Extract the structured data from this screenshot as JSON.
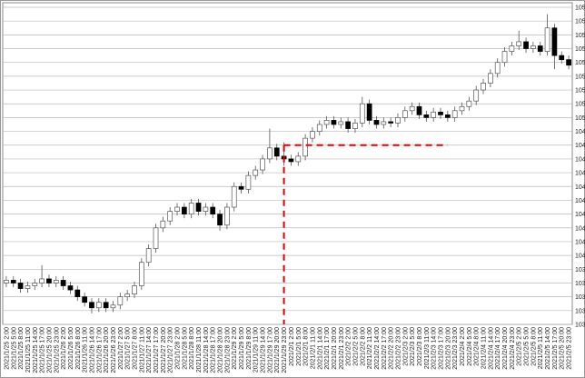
{
  "chart_data": {
    "type": "candlestick",
    "categories": [
      "2021/1/25 2:00",
      "2021/1/25 5:00",
      "2021/1/25 8:00",
      "2021/1/25 11:00",
      "2021/1/25 14:00",
      "2021/1/25 17:00",
      "2021/1/25 20:00",
      "2021/1/25 23:00",
      "2021/1/26 2:00",
      "2021/1/26 5:00",
      "2021/1/26 8:00",
      "2021/1/26 11:00",
      "2021/1/26 14:00",
      "2021/1/26 17:00",
      "2021/1/26 20:00",
      "2021/1/26 23:00",
      "2021/1/27 2:00",
      "2021/1/27 5:00",
      "2021/1/27 8:00",
      "2021/1/27 11:00",
      "2021/1/27 14:00",
      "2021/1/27 17:00",
      "2021/1/27 20:00",
      "2021/1/27 23:00",
      "2021/1/28 2:00",
      "2021/1/28 5:00",
      "2021/1/28 8:00",
      "2021/1/28 11:00",
      "2021/1/28 14:00",
      "2021/1/28 17:00",
      "2021/1/28 20:00",
      "2021/1/28 23:00",
      "2021/1/29 2:00",
      "2021/1/29 5:00",
      "2021/1/29 8:00",
      "2021/1/29 11:00",
      "2021/1/29 14:00",
      "2021/1/29 17:00",
      "2021/1/29 20:00",
      "2021/1/29 23:00",
      "2021/2/1 2:00",
      "2021/2/1 5:00",
      "2021/2/1 8:00",
      "2021/2/1 11:00",
      "2021/2/1 14:00",
      "2021/2/1 17:00",
      "2021/2/1 20:00",
      "2021/2/1 23:00",
      "2021/2/2 2:00",
      "2021/2/2 5:00",
      "2021/2/2 8:00",
      "2021/2/2 11:00",
      "2021/2/2 14:00",
      "2021/2/2 17:00",
      "2021/2/2 20:00",
      "2021/2/2 23:00",
      "2021/2/3 2:00",
      "2021/2/3 5:00",
      "2021/2/3 8:00",
      "2021/2/3 11:00",
      "2021/2/3 14:00",
      "2021/2/3 17:00",
      "2021/2/3 20:00",
      "2021/2/3 23:00",
      "2021/2/4 2:00",
      "2021/2/4 5:00",
      "2021/2/4 8:00",
      "2021/2/4 11:00",
      "2021/2/4 14:00",
      "2021/2/4 17:00",
      "2021/2/4 20:00",
      "2021/2/4 23:00",
      "2021/2/5 2:00",
      "2021/2/5 5:00",
      "2021/2/5 8:00",
      "2021/2/5 11:00",
      "2021/2/5 14:00",
      "2021/2/5 17:00",
      "2021/2/5 20:00",
      "2021/2/5 23:00"
    ],
    "open": [
      103.8,
      103.82,
      103.8,
      103.76,
      103.78,
      103.8,
      103.83,
      103.8,
      103.82,
      103.78,
      103.75,
      103.7,
      103.66,
      103.62,
      103.66,
      103.62,
      103.64,
      103.7,
      103.72,
      103.78,
      103.95,
      104.05,
      104.2,
      104.25,
      104.32,
      104.35,
      104.3,
      104.38,
      104.32,
      104.35,
      104.3,
      104.22,
      104.35,
      104.5,
      104.48,
      104.58,
      104.62,
      104.7,
      104.78,
      104.72,
      104.7,
      104.68,
      104.72,
      104.85,
      104.9,
      104.95,
      104.98,
      104.95,
      104.97,
      104.92,
      104.96,
      105.1,
      104.98,
      104.95,
      104.97,
      104.96,
      105.0,
      105.05,
      105.08,
      105.02,
      105.0,
      105.04,
      105.02,
      105.0,
      105.05,
      105.08,
      105.12,
      105.2,
      105.25,
      105.32,
      105.4,
      105.48,
      105.52,
      105.55,
      105.5,
      105.52,
      105.48,
      105.65,
      105.45,
      105.42
    ],
    "high": [
      103.85,
      103.85,
      103.83,
      103.81,
      103.83,
      103.93,
      103.86,
      103.85,
      103.85,
      103.81,
      103.78,
      103.73,
      103.69,
      103.69,
      103.69,
      103.67,
      103.73,
      103.75,
      103.81,
      103.98,
      104.08,
      104.23,
      104.28,
      104.35,
      104.38,
      104.38,
      104.41,
      104.41,
      104.38,
      104.38,
      104.33,
      104.38,
      104.53,
      104.53,
      104.61,
      104.65,
      104.73,
      104.92,
      104.81,
      104.82,
      104.73,
      104.75,
      104.88,
      104.93,
      104.98,
      105.01,
      105.01,
      105.0,
      105.0,
      104.99,
      105.15,
      105.13,
      105.01,
      105.0,
      105.0,
      105.03,
      105.08,
      105.11,
      105.11,
      105.05,
      105.07,
      105.07,
      105.05,
      105.08,
      105.11,
      105.15,
      105.23,
      105.28,
      105.35,
      105.43,
      105.51,
      105.55,
      105.63,
      105.58,
      105.55,
      105.55,
      105.75,
      105.68,
      105.48,
      105.45
    ],
    "low": [
      103.77,
      103.77,
      103.73,
      103.73,
      103.75,
      103.77,
      103.77,
      103.77,
      103.75,
      103.72,
      103.67,
      103.63,
      103.58,
      103.59,
      103.59,
      103.59,
      103.61,
      103.67,
      103.69,
      103.75,
      103.92,
      104.02,
      104.17,
      104.22,
      104.29,
      104.27,
      104.27,
      104.29,
      104.29,
      104.27,
      104.18,
      104.19,
      104.32,
      104.45,
      104.45,
      104.55,
      104.59,
      104.67,
      104.69,
      104.65,
      104.65,
      104.65,
      104.69,
      104.82,
      104.87,
      104.92,
      104.92,
      104.92,
      104.89,
      104.89,
      104.93,
      104.95,
      104.92,
      104.92,
      104.93,
      104.93,
      104.97,
      105.02,
      104.99,
      104.97,
      104.97,
      104.99,
      104.97,
      104.97,
      105.02,
      105.05,
      105.09,
      105.17,
      105.22,
      105.29,
      105.37,
      105.45,
      105.49,
      105.47,
      105.47,
      105.45,
      105.45,
      105.35,
      105.39,
      105.35
    ],
    "close": [
      103.82,
      103.8,
      103.76,
      103.78,
      103.8,
      103.83,
      103.8,
      103.82,
      103.78,
      103.75,
      103.7,
      103.66,
      103.62,
      103.66,
      103.62,
      103.64,
      103.7,
      103.72,
      103.78,
      103.95,
      104.05,
      104.2,
      104.25,
      104.32,
      104.35,
      104.3,
      104.38,
      104.32,
      104.35,
      104.3,
      104.22,
      104.35,
      104.5,
      104.48,
      104.58,
      104.62,
      104.7,
      104.78,
      104.72,
      104.7,
      104.68,
      104.72,
      104.85,
      104.9,
      104.95,
      104.98,
      104.95,
      104.97,
      104.92,
      104.96,
      105.1,
      104.98,
      104.95,
      104.97,
      104.96,
      105.0,
      105.05,
      105.08,
      105.02,
      105.0,
      105.04,
      105.02,
      105.0,
      105.05,
      105.08,
      105.12,
      105.2,
      105.25,
      105.32,
      105.4,
      105.48,
      105.52,
      105.55,
      105.5,
      105.52,
      105.48,
      105.65,
      105.45,
      105.42,
      105.38
    ],
    "up_color": "#ffffff",
    "down_color": "#000000",
    "outline_color": "#555555",
    "ylim": [
      103.5,
      105.8
    ],
    "yticks": [
      103.5,
      103.6,
      103.7,
      103.8,
      103.9,
      104,
      104.1,
      104.2,
      104.3,
      104.4,
      104.5,
      104.6,
      104.7,
      104.8,
      104.9,
      105,
      105.1,
      105.2,
      105.3,
      105.4,
      105.5,
      105.6,
      105.7,
      105.8
    ],
    "grid": true,
    "annotations": [
      {
        "type": "hline",
        "y": 104.8,
        "x_from": "2021/1/29 23:00",
        "x_to": "2021/2/3 20:00",
        "color": "#e00000"
      },
      {
        "type": "vline",
        "x": "2021/1/29 23:00",
        "y_from": 104.8,
        "color": "#e00000"
      }
    ]
  }
}
